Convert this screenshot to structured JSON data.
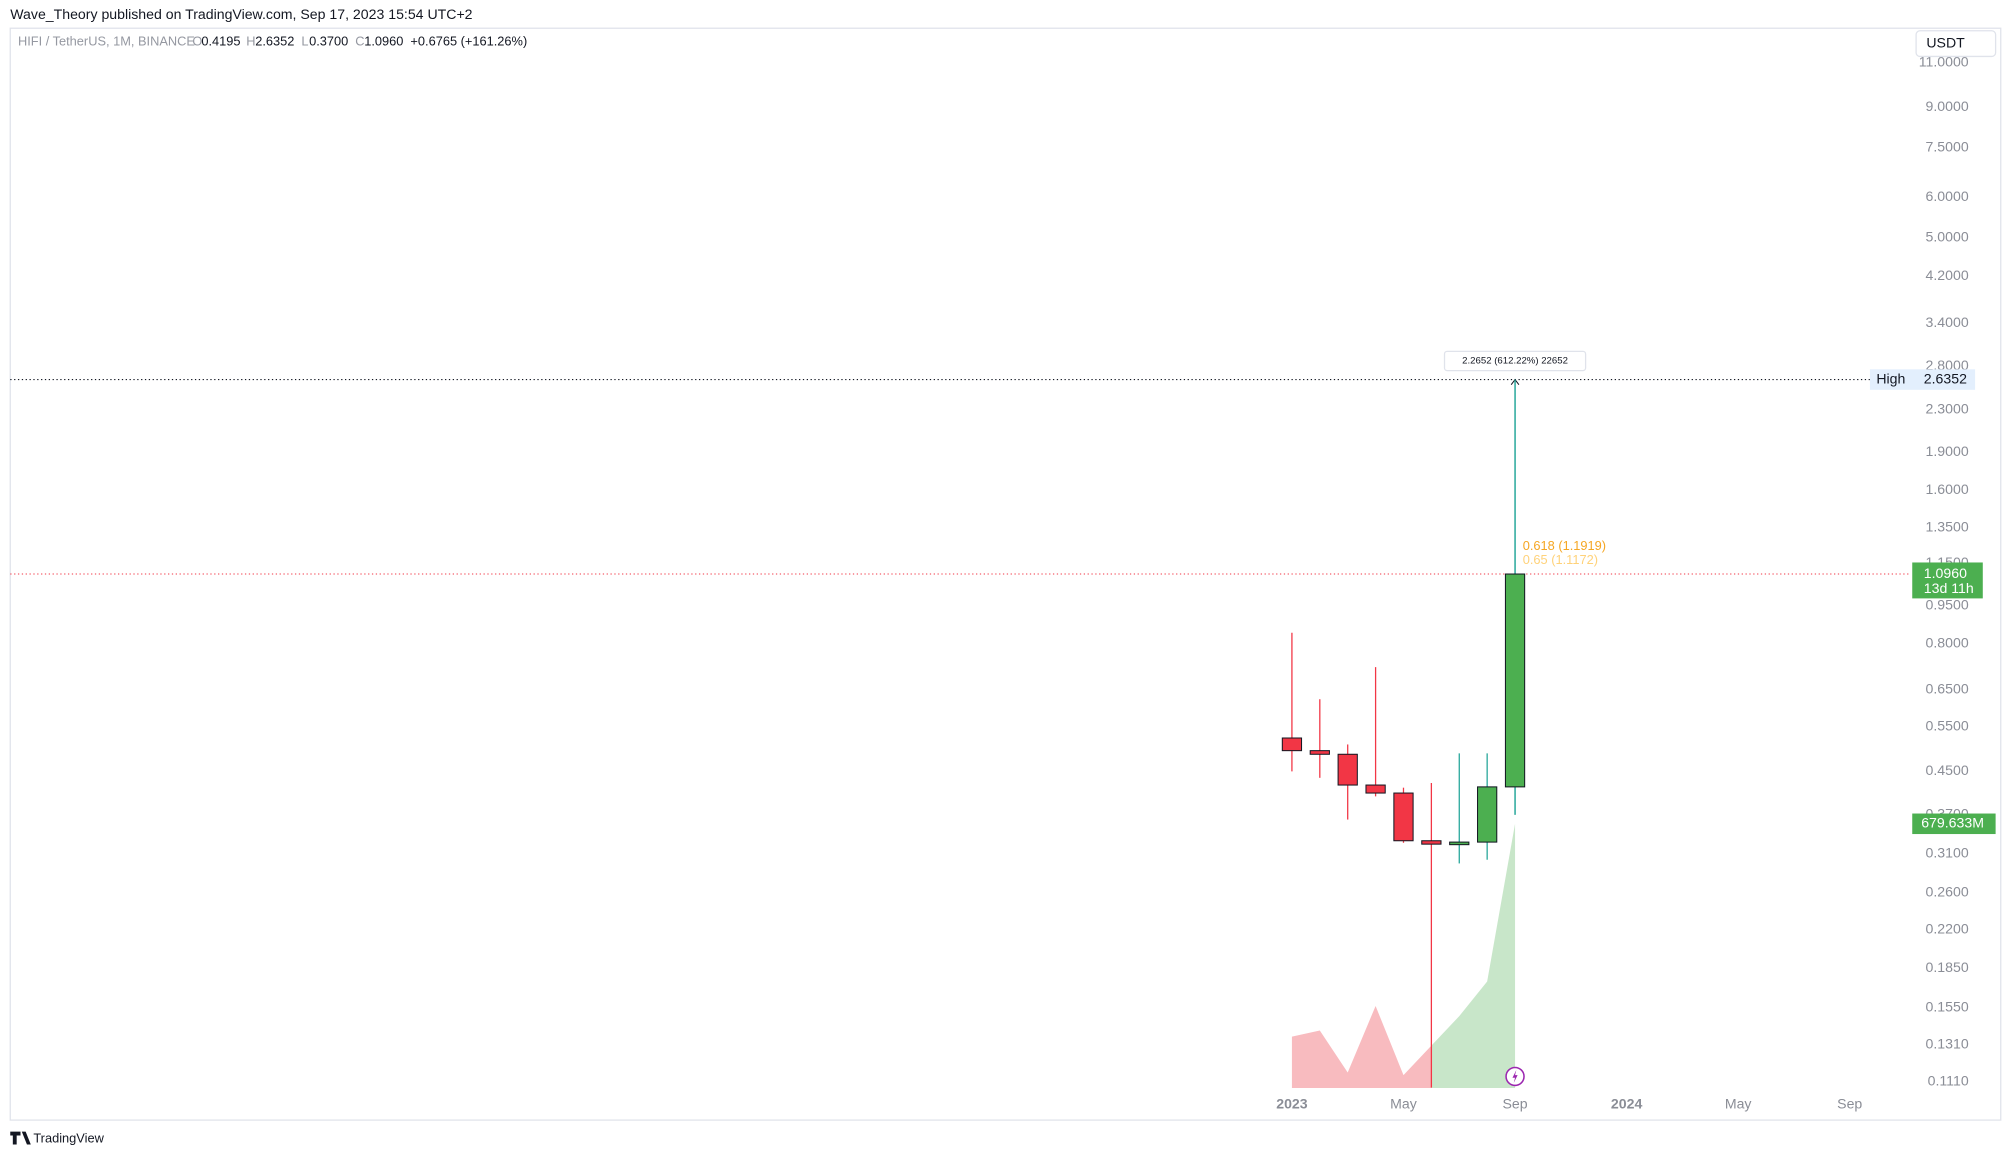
{
  "header": {
    "publisher": "Wave_Theory published on TradingView.com, Sep 17, 2023 15:54 UTC+2",
    "currency_button": "USDT",
    "footer_logo": "TradingView"
  },
  "chart_data": {
    "type": "candlestick",
    "symbol": "HIFI / TetherUS, 1M, BINANCE",
    "legend": {
      "open_label": "O",
      "open": "0.4195",
      "high_label": "H",
      "high": "2.6352",
      "low_label": "L",
      "low": "0.3700",
      "close_label": "C",
      "close": "1.0960",
      "change": "+0.6765 (+161.26%)"
    },
    "x": [
      "2023-01",
      "2023-02",
      "2023-03",
      "2023-04",
      "2023-05",
      "2023-06",
      "2023-07",
      "2023-08",
      "2023-09"
    ],
    "open": [
      0.523,
      0.494,
      0.486,
      0.423,
      0.408,
      0.329,
      0.324,
      0.327,
      0.4195
    ],
    "high": [
      0.841,
      0.623,
      0.508,
      0.72,
      0.418,
      0.427,
      0.488,
      0.488,
      2.6352
    ],
    "low": [
      0.45,
      0.437,
      0.362,
      0.402,
      0.326,
      0.108,
      0.297,
      0.302,
      0.37
    ],
    "close": [
      0.494,
      0.486,
      0.423,
      0.408,
      0.329,
      0.324,
      0.327,
      0.4195,
      1.096
    ],
    "up_color": "#4caf50",
    "down_color": "#f23645",
    "volume_up_color": "#c8e6c9",
    "volume_down_color": "#f8bbbf",
    "volume": [
      132000000,
      148000000,
      40000000,
      211000000,
      33000000,
      109000000,
      185000000,
      274000000,
      679633000
    ],
    "volume_label": "679.633M",
    "volume_lim": [
      0,
      1000000000
    ],
    "xlim": [
      "2019-03",
      "2024-10"
    ],
    "xticks": [
      {
        "value": "2023-01",
        "label": "2023"
      },
      {
        "value": "2023-05",
        "label": "May"
      },
      {
        "value": "2023-09",
        "label": "Sep"
      },
      {
        "value": "2024-01",
        "label": "2024"
      },
      {
        "value": "2024-05",
        "label": "May"
      },
      {
        "value": "2024-09",
        "label": "Sep"
      }
    ],
    "log_scale": true,
    "ylim": [
      0.0933,
      12.86
    ],
    "yticks": [
      {
        "value": 11,
        "label": "11.0000"
      },
      {
        "value": 9,
        "label": "9.0000"
      },
      {
        "value": 7.5,
        "label": "7.5000"
      },
      {
        "value": 6,
        "label": "6.0000"
      },
      {
        "value": 5,
        "label": "5.0000"
      },
      {
        "value": 4.2,
        "label": "4.2000"
      },
      {
        "value": 3.4,
        "label": "3.4000"
      },
      {
        "value": 2.8,
        "label": "2.8000"
      },
      {
        "value": 2.3,
        "label": "2.3000"
      },
      {
        "value": 1.9,
        "label": "1.9000"
      },
      {
        "value": 1.6,
        "label": "1.6000"
      },
      {
        "value": 1.35,
        "label": "1.3500"
      },
      {
        "value": 1.15,
        "label": "1.1500"
      },
      {
        "value": 0.95,
        "label": "0.9500"
      },
      {
        "value": 0.8,
        "label": "0.8000"
      },
      {
        "value": 0.65,
        "label": "0.6500"
      },
      {
        "value": 0.55,
        "label": "0.5500"
      },
      {
        "value": 0.45,
        "label": "0.4500"
      },
      {
        "value": 0.37,
        "label": "0.3700"
      },
      {
        "value": 0.31,
        "label": "0.3100"
      },
      {
        "value": 0.26,
        "label": "0.2600"
      },
      {
        "value": 0.22,
        "label": "0.2200"
      },
      {
        "value": 0.185,
        "label": "0.1850"
      },
      {
        "value": 0.155,
        "label": "0.1550"
      },
      {
        "value": 0.131,
        "label": "0.1310"
      },
      {
        "value": 0.111,
        "label": "0.1110"
      }
    ],
    "high_line": {
      "label": "High",
      "value": 2.6352
    },
    "last_price": {
      "value": 1.096,
      "label": "1.0960",
      "countdown": "13d 11h"
    },
    "measure": {
      "from": 0.37,
      "to": 2.6352,
      "label": "2.2652 (612.22%) 22652"
    },
    "annotations": [
      "0.618 (1.1919)",
      "0.65 (1.1172)"
    ]
  }
}
